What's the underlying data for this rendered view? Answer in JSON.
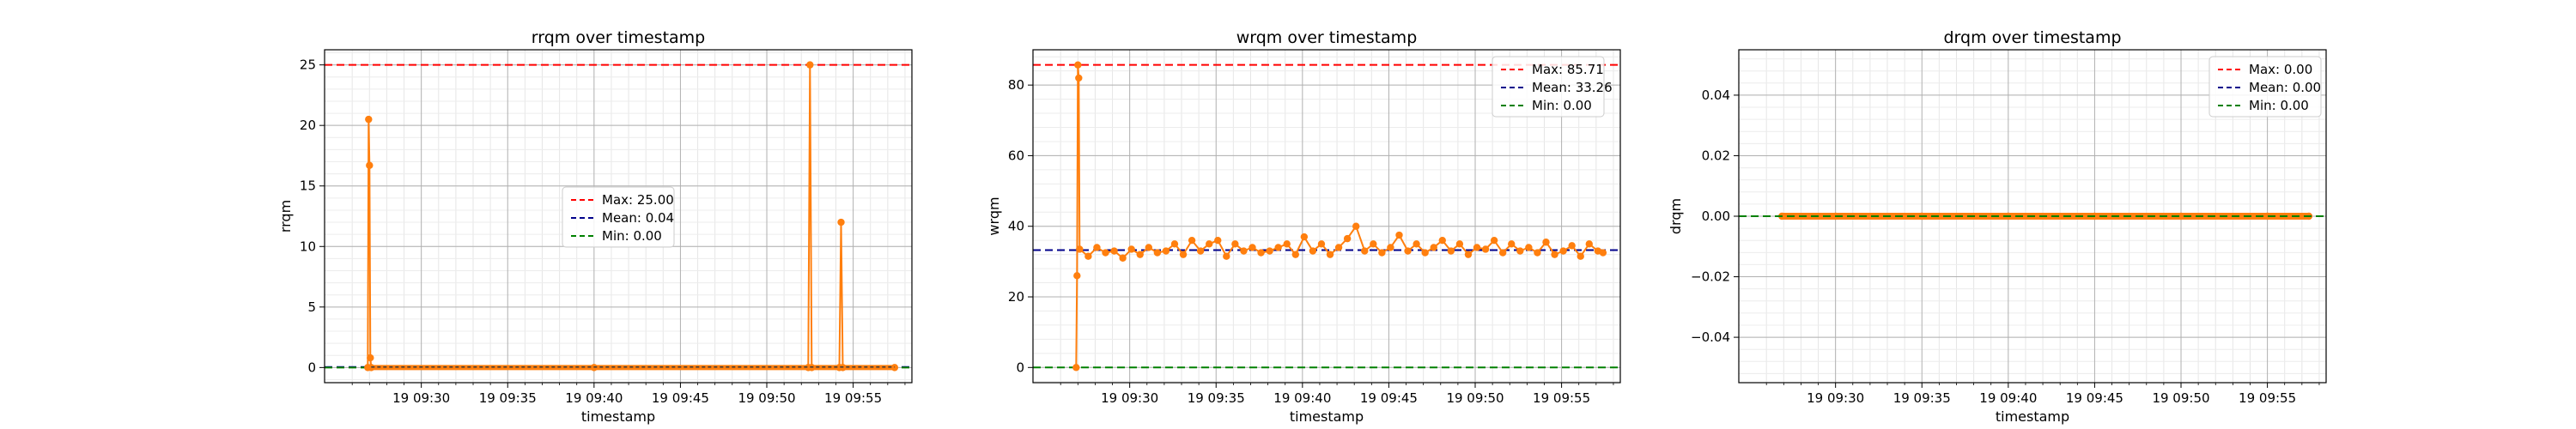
{
  "chart_data": [
    {
      "type": "line",
      "title": "rrqm over timestamp",
      "xlabel": "timestamp",
      "ylabel": "rrqm",
      "xticks": [
        "19 09:30",
        "19 09:35",
        "19 09:40",
        "19 09:45",
        "19 09:50",
        "19 09:55"
      ],
      "xlim_minutes": [
        24.4,
        58.4
      ],
      "ylim": [
        -1.25,
        26.25
      ],
      "yticks": [
        0,
        5,
        10,
        15,
        20,
        25
      ],
      "ytick_labels": [
        "0",
        "5",
        "10",
        "15",
        "20",
        "25"
      ],
      "grid": true,
      "legend_position": "center",
      "reference_lines": [
        {
          "label": "Max: 25.00",
          "value": 25.0,
          "color": "#ff0000"
        },
        {
          "label": "Mean: 0.04",
          "value": 0.04,
          "color": "#00008b"
        },
        {
          "label": "Min: 0.00",
          "value": 0.0,
          "color": "#008000"
        }
      ],
      "series": [
        {
          "color": "#ff7f0e",
          "points": [
            [
              26.9,
              0
            ],
            [
              26.95,
              20.5
            ],
            [
              27.0,
              16.7
            ],
            [
              27.05,
              0.8
            ],
            [
              27.1,
              0
            ],
            [
              40,
              0
            ],
            [
              52.4,
              0
            ],
            [
              52.5,
              25
            ],
            [
              52.6,
              0
            ],
            [
              54.2,
              0
            ],
            [
              54.3,
              12
            ],
            [
              54.4,
              0
            ],
            [
              57.4,
              0
            ]
          ]
        }
      ]
    },
    {
      "type": "line",
      "title": "wrqm over timestamp",
      "xlabel": "timestamp",
      "ylabel": "wrqm",
      "xticks": [
        "19 09:30",
        "19 09:35",
        "19 09:40",
        "19 09:45",
        "19 09:50",
        "19 09:55"
      ],
      "xlim_minutes": [
        24.4,
        58.4
      ],
      "ylim": [
        -4.3,
        90.0
      ],
      "yticks": [
        0,
        20,
        40,
        60,
        80
      ],
      "ytick_labels": [
        "0",
        "20",
        "40",
        "60",
        "80"
      ],
      "grid": true,
      "legend_position": "top-right",
      "reference_lines": [
        {
          "label": "Max: 85.71",
          "value": 85.71,
          "color": "#ff0000"
        },
        {
          "label": "Mean: 33.26",
          "value": 33.26,
          "color": "#00008b"
        },
        {
          "label": "Min: 0.00",
          "value": 0.0,
          "color": "#008000"
        }
      ],
      "series": [
        {
          "color": "#ff7f0e",
          "points": [
            [
              26.9,
              0
            ],
            [
              26.95,
              26
            ],
            [
              27.0,
              85.7
            ],
            [
              27.05,
              82
            ],
            [
              27.1,
              33.5
            ],
            [
              27.6,
              31.5
            ],
            [
              28.1,
              34
            ],
            [
              28.6,
              32.5
            ],
            [
              29.1,
              33
            ],
            [
              29.6,
              31
            ],
            [
              30.1,
              33.5
            ],
            [
              30.6,
              32
            ],
            [
              31.1,
              34
            ],
            [
              31.6,
              32.5
            ],
            [
              32.1,
              33
            ],
            [
              32.6,
              35
            ],
            [
              33.1,
              32
            ],
            [
              33.6,
              36
            ],
            [
              34.1,
              33
            ],
            [
              34.6,
              35
            ],
            [
              35.1,
              36
            ],
            [
              35.6,
              31.5
            ],
            [
              36.1,
              35
            ],
            [
              36.6,
              33
            ],
            [
              37.1,
              34
            ],
            [
              37.6,
              32.5
            ],
            [
              38.1,
              33
            ],
            [
              38.6,
              34
            ],
            [
              39.1,
              35
            ],
            [
              39.6,
              32
            ],
            [
              40.1,
              37
            ],
            [
              40.6,
              33
            ],
            [
              41.1,
              35
            ],
            [
              41.6,
              32
            ],
            [
              42.1,
              34
            ],
            [
              42.6,
              36.5
            ],
            [
              43.1,
              40
            ],
            [
              43.6,
              33
            ],
            [
              44.1,
              35
            ],
            [
              44.6,
              32.5
            ],
            [
              45.1,
              34
            ],
            [
              45.6,
              37.5
            ],
            [
              46.1,
              33
            ],
            [
              46.6,
              35
            ],
            [
              47.1,
              32.5
            ],
            [
              47.6,
              34
            ],
            [
              48.1,
              36
            ],
            [
              48.6,
              33
            ],
            [
              49.1,
              35
            ],
            [
              49.6,
              32
            ],
            [
              50.1,
              34
            ],
            [
              50.6,
              33.5
            ],
            [
              51.1,
              36
            ],
            [
              51.6,
              32.5
            ],
            [
              52.1,
              35
            ],
            [
              52.6,
              33
            ],
            [
              53.1,
              34
            ],
            [
              53.6,
              32.5
            ],
            [
              54.1,
              35.5
            ],
            [
              54.6,
              32
            ],
            [
              55.1,
              33
            ],
            [
              55.6,
              34.5
            ],
            [
              56.1,
              31.5
            ],
            [
              56.6,
              35
            ],
            [
              57.1,
              33
            ],
            [
              57.4,
              32.5
            ]
          ]
        }
      ]
    },
    {
      "type": "line",
      "title": "drqm over timestamp",
      "xlabel": "timestamp",
      "ylabel": "drqm",
      "xticks": [
        "19 09:30",
        "19 09:35",
        "19 09:40",
        "19 09:45",
        "19 09:50",
        "19 09:55"
      ],
      "xlim_minutes": [
        24.4,
        58.4
      ],
      "ylim": [
        -0.055,
        0.055
      ],
      "yticks": [
        -0.04,
        -0.02,
        0,
        0.02,
        0.04
      ],
      "ytick_labels": [
        "−0.04",
        "−0.02",
        "0.00",
        "0.02",
        "0.04"
      ],
      "grid": true,
      "legend_position": "top-right",
      "reference_lines": [
        {
          "label": "Max: 0.00",
          "value": 0.0,
          "color": "#ff0000"
        },
        {
          "label": "Mean: 0.00",
          "value": 0.0,
          "color": "#00008b"
        },
        {
          "label": "Min: 0.00",
          "value": 0.0,
          "color": "#008000"
        }
      ],
      "series": [
        {
          "color": "#ff7f0e",
          "points": [
            [
              26.9,
              0
            ],
            [
              30,
              0
            ],
            [
              35,
              0
            ],
            [
              40,
              0
            ],
            [
              45,
              0
            ],
            [
              50,
              0
            ],
            [
              55,
              0
            ],
            [
              57.4,
              0
            ]
          ]
        }
      ]
    }
  ]
}
